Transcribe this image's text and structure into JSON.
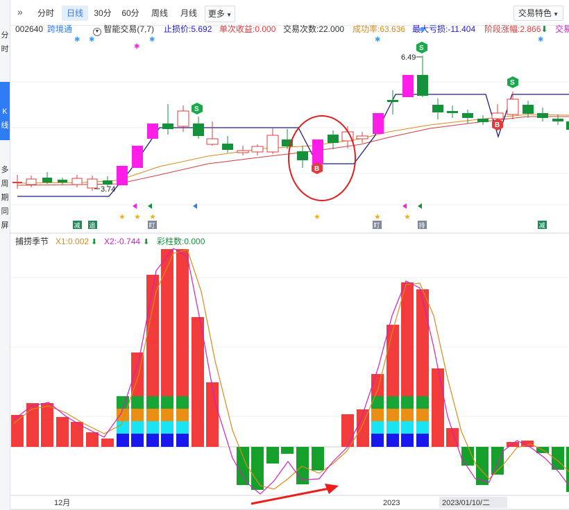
{
  "sidebar": {
    "items": [
      "分",
      "时",
      "K",
      "线",
      "多",
      "周",
      "期",
      "同",
      "屏"
    ]
  },
  "toolbar": {
    "tabs": [
      "分时",
      "日线",
      "30分",
      "60分",
      "周线",
      "月线",
      "更多"
    ],
    "active_tab": "日线",
    "feature_button": "交易特色"
  },
  "infobar": {
    "code": "002640",
    "name": "跨境通",
    "strategy": "智能交易(7,7)",
    "stop_loss": "止损价:5.692",
    "single_gain": "单次收益:0.000",
    "trade_count": "交易次数:22.000",
    "success_rate": "成功率:63.636",
    "max_loss": "最大亏损:-11.404",
    "stage_gain": "阶段涨幅:2.866",
    "trade_tag": "交易"
  },
  "annotations": {
    "high_label": "6.49",
    "low_label": "3.74",
    "sell": "S",
    "buy": "B",
    "tag_reduce": "减",
    "tag_chase": "追",
    "tag_eye": "盯",
    "tag_hold": "持"
  },
  "subchart": {
    "title": "捕捞季节",
    "x1": "X1:0.002",
    "x2": "X2:-0.744",
    "bar_count": "彩柱数:0.000"
  },
  "xaxis": {
    "dec": "12月",
    "y2023": "2023",
    "date": "2023/01/10/二"
  },
  "colors": {
    "up": "#ef3d3d",
    "down": "#15913b",
    "magenta": "#ff1ee8",
    "navy": "#1a1a8c",
    "gold": "#d98a1b",
    "accent": "#2f7df6"
  }
}
